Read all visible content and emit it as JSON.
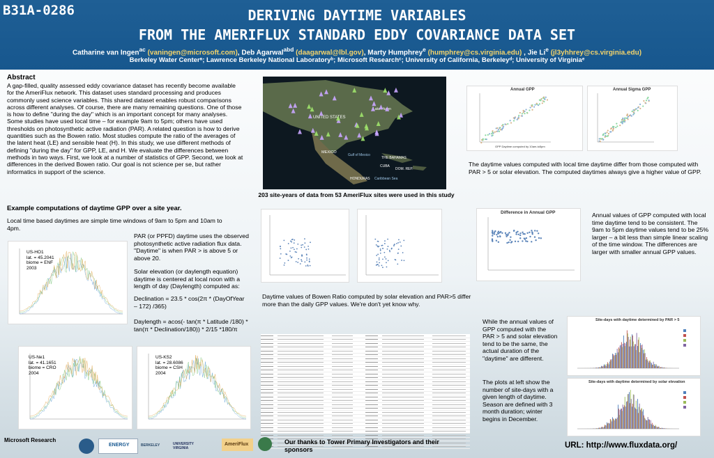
{
  "header": {
    "poster_id": "B31A-0286",
    "title_line1": "DERIVING DAYTIME VARIABLES",
    "title_line2": "FROM THE AMERIFLUX STANDARD EDDY COVARIANCE DATA SET",
    "authors": [
      {
        "name": "Catharine van Ingen",
        "sup": "ac",
        "email": "(vaningen@microsoft.com)"
      },
      {
        "name": "Deb Agarwal",
        "sup": "abd",
        "email": "(daagarwal@lbl.gov)"
      },
      {
        "name": "Marty Humphrey",
        "sup": "e",
        "email": "(humphrey@cs.virginia.edu)"
      },
      {
        "name": "Jie Li",
        "sup": "e",
        "email": "(jl3yhhrey@cs.virginia.edu)"
      }
    ],
    "affiliations": "Berkeley Water Centerᵃ; Lawrence Berkeley National Laboratoryᵇ; Microsoft Researchᶜ; University of California, Berkeleyᵈ; University of Virginiaᵉ"
  },
  "abstract": {
    "heading": "Abstract",
    "body": "A gap-filled, quality assessed eddy covariance dataset has recently become available for the AmeriFlux network. This dataset uses standard processing and produces commonly used science variables. This shared dataset enables robust comparisons across different analyses. Of course, there are many remaining questions. One of those is how to define \"during the day\" which is an important concept for many analyses. Some studies have used local time – for example 9am to 5pm; others have used thresholds on photosynthetic active radiation (PAR). A related question is how to derive quantities such as the Bowen ratio. Most studies compute the ratio of the averages of the latent heat (LE) and sensible heat (H). In this study, we  use different methods of defining \"during the day\" for GPP, LE, and H. We evaluate the differences between methods in two ways. First, we look at a number of statistics of GPP. Second, we look at differences in the derived Bowen ratio. Our goal is not science per se, but rather informatics in support of the science."
  },
  "map": {
    "labels": [
      "UNITED STATES",
      "MEXICO",
      "Gulf of Mexico",
      "THE BAHAMAS",
      "CUBA",
      "DOM. REP.",
      "HONDURAS",
      "Caribbean Sea",
      "Lake Huron"
    ],
    "caption": "203 site-years of data from 53 AmeriFlux sites were used in this study"
  },
  "annual_charts": {
    "left_title": "Annual GPP",
    "right_title": "Annual Sigma GPP",
    "left_xlabel": "GPP Daytime computed by 10am-to5pm",
    "caption": "The daytime values computed with local time daytime differ from those computed with PAR > 5 or solar elevation. The computed daytimes always give a higher value of GPP."
  },
  "example": {
    "heading": "Example computations of daytime GPP over a site year.",
    "local_time_text": "Local time based daytimes are simple time windows of 9am to 5pm and 10am to 4pm.",
    "par_text": "PAR (or PPFD) daytime uses the observed photosynthetic active radiation flux data. \"Daytime\" is when PAR > is above 5 or above 20.",
    "solar_text": "Solar elevation (or daylength equation) daytime is centered at local noon with a length of day (Daylength) computed as:",
    "declination": "Declination = 23.5 * cos(2π * (DayOfYear – 172) /365)",
    "daylength": "Daylength = acos(- tan(π * Latitude /180) * tan(π * Declination/180)) * 2/15 *180/π"
  },
  "site_plots": [
    {
      "site": "US-HO1",
      "lat": "lat. = 45.2041",
      "biome": "biome = ENF",
      "year": "2003"
    },
    {
      "site": "US-Ne1",
      "lat": "lat. = 41.1651",
      "biome": "biome = CRO",
      "year": "2004"
    },
    {
      "site": "US-KS2",
      "lat": "lat. = 28.6086",
      "biome": "biome = CSH",
      "year": "2004"
    }
  ],
  "bowen": {
    "caption": "Daytime values of Bowen Ratio computed by solar elevation and PAR>5 differ more than the daily GPP values. We're don't yet know why."
  },
  "difference_chart": {
    "title": "Difference in Annual GPP",
    "xlabel": "GPP Daytime computed by 10am-to-4pm",
    "caption": "Annual values of GPP computed with local time daytime tend to be consistent. The 9am to 5pm daytime values tend to be 25% larger – a bit less than simple linear scaling of the time window. The differences are larger with smaller annual GPP values."
  },
  "site_days": {
    "title_par": "Site-days with daytime determined by PAR > 5",
    "title_solar": "Site-days with daytime determined by solar elevation",
    "caption1": "While the annual values of GPP computed with the PAR > 5 and solar elevation tend to be the same, the actual duration of the \"daytime\" are different.",
    "caption2": "The plots at left show the number of site-days with a given length of daytime. Season are defined with 3 month duration; winter begins in December."
  },
  "footer": {
    "thanks": "Our thanks to Tower Primary Investigators and their sponsors",
    "url": "URL:  http://www.fluxdata.org/",
    "logos": [
      "Microsoft Research",
      "ENERGY",
      "BERKELEY",
      "UNIVERSITY VIRGINIA",
      "AmeriFlux"
    ]
  },
  "colors": {
    "header_bg": "#1a5a92",
    "email": "#f3d36b",
    "site_markers": "#c9a6ff"
  }
}
